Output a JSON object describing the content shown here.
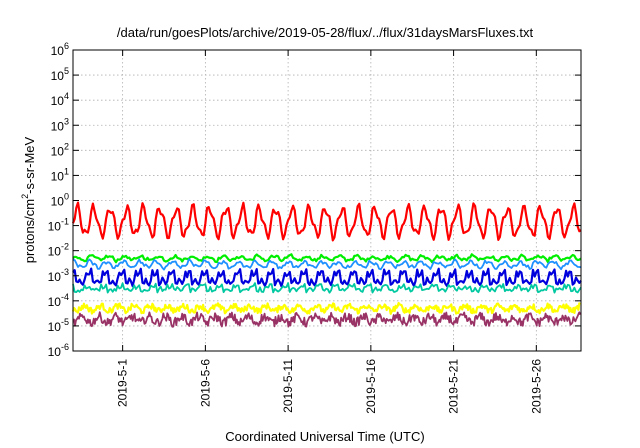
{
  "chart_data": {
    "type": "line",
    "title": "/data/run/goesPlots/archive/2019-05-28/flux/../flux/31daysMarsFluxes.txt",
    "xlabel": "Coordinated Universal Time (UTC)",
    "ylabel": {
      "base": "protons/cm",
      "sup": "2",
      "rest": "-s-sr-MeV"
    },
    "yscale": "log",
    "ylim": [
      1e-06,
      1000000.0
    ],
    "ytick_exponents": [
      -6,
      -5,
      -4,
      -3,
      -2,
      -1,
      0,
      1,
      2,
      3,
      4,
      5,
      6
    ],
    "ytick_base": "10",
    "xlim_days": [
      28.0,
      58.7
    ],
    "xticks": [
      {
        "label": "2019-5-1",
        "day": 31
      },
      {
        "label": "2019-5-6",
        "day": 36
      },
      {
        "label": "2019-5-11",
        "day": 41
      },
      {
        "label": "2019-5-16",
        "day": 46
      },
      {
        "label": "2019-5-21",
        "day": 51
      },
      {
        "label": "2019-5-26",
        "day": 56
      }
    ],
    "grid": true,
    "series": [
      {
        "color": "#ff0000",
        "width": 2.2,
        "base": -0.85,
        "amp": 0.55,
        "period": 1.0,
        "noise": 0.05,
        "kind": "smooth"
      },
      {
        "color": "#00ee00",
        "width": 2.2,
        "base": -2.3,
        "amp": 0.08,
        "period": 1.0,
        "noise": 0.06,
        "kind": "smooth"
      },
      {
        "color": "#1e90ff",
        "width": 1.8,
        "base": -2.55,
        "amp": 0.12,
        "period": 1.0,
        "noise": 0.06,
        "kind": "smooth"
      },
      {
        "color": "#0000dd",
        "width": 2.2,
        "base": -3.1,
        "amp": 0.35,
        "period": 1.0,
        "noise": 0.08,
        "kind": "spiky"
      },
      {
        "color": "#00c8a0",
        "width": 1.8,
        "base": -3.5,
        "amp": 0.15,
        "period": 1.0,
        "noise": 0.08,
        "kind": "spiky"
      },
      {
        "color": "#ffff00",
        "width": 2.2,
        "base": -4.3,
        "amp": 0.1,
        "period": 1.0,
        "noise": 0.12,
        "kind": "noisy"
      },
      {
        "color": "#993366",
        "width": 1.8,
        "base": -4.75,
        "amp": 0.12,
        "period": 1.0,
        "noise": 0.18,
        "kind": "noisy"
      }
    ]
  }
}
